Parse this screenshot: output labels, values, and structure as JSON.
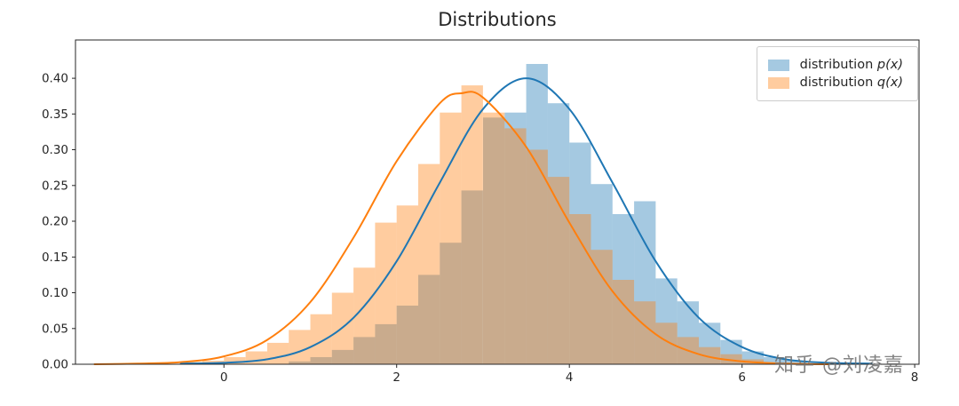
{
  "figure": {
    "title": "Distributions",
    "watermark": "知乎 @刘凌嘉",
    "background": "#ffffff"
  },
  "chart_data": {
    "type": "histogram+kde",
    "title": "Distributions",
    "xlabel": "",
    "ylabel": "",
    "xlim": [
      -1.72,
      8.05
    ],
    "ylim": [
      0,
      0.4535
    ],
    "xticks": [
      0,
      2,
      4,
      6,
      8
    ],
    "yticks": [
      0,
      0.05,
      0.1,
      0.15,
      0.2,
      0.25,
      0.3,
      0.35,
      0.4
    ],
    "bin_width": 0.25,
    "grid": false,
    "legend_position": "upper right",
    "axis_color": "#262626",
    "series": [
      {
        "name": "distribution p(x)",
        "label_prefix": "distribution ",
        "label_math": "p(x)",
        "line_color": "#1f77b4",
        "fill_color": "rgba(31,119,180,0.4)",
        "bar_centers": [
          0.875,
          1.125,
          1.375,
          1.625,
          1.875,
          2.125,
          2.375,
          2.625,
          2.875,
          3.125,
          3.375,
          3.625,
          3.875,
          4.125,
          4.375,
          4.625,
          4.875,
          5.125,
          5.375,
          5.625,
          5.875,
          6.125,
          6.375,
          6.625
        ],
        "bar_heights": [
          0.004,
          0.01,
          0.02,
          0.038,
          0.056,
          0.082,
          0.125,
          0.17,
          0.243,
          0.345,
          0.352,
          0.42,
          0.365,
          0.31,
          0.252,
          0.21,
          0.228,
          0.12,
          0.088,
          0.058,
          0.034,
          0.018,
          0.01,
          0.005
        ],
        "curve_x": [
          -0.5,
          0,
          0.5,
          1,
          1.5,
          2,
          2.5,
          3,
          3.5,
          4,
          4.5,
          5,
          5.5,
          6,
          6.5,
          7,
          7.5
        ],
        "curve_y": [
          0.001,
          0.002,
          0.007,
          0.024,
          0.065,
          0.144,
          0.254,
          0.357,
          0.4,
          0.357,
          0.254,
          0.144,
          0.065,
          0.024,
          0.007,
          0.002,
          0.001
        ]
      },
      {
        "name": "distribution q(x)",
        "label_prefix": "distribution ",
        "label_math": "q(x)",
        "line_color": "#ff7f0e",
        "fill_color": "rgba(255,127,14,0.4)",
        "bar_centers": [
          -0.375,
          -0.125,
          0.125,
          0.375,
          0.625,
          0.875,
          1.125,
          1.375,
          1.625,
          1.875,
          2.125,
          2.375,
          2.625,
          2.875,
          3.125,
          3.375,
          3.625,
          3.875,
          4.125,
          4.375,
          4.625,
          4.875,
          5.125,
          5.375,
          5.625,
          5.875,
          6.125
        ],
        "bar_heights": [
          0.003,
          0.005,
          0.01,
          0.018,
          0.03,
          0.048,
          0.07,
          0.1,
          0.135,
          0.198,
          0.222,
          0.28,
          0.352,
          0.39,
          0.352,
          0.33,
          0.3,
          0.262,
          0.21,
          0.16,
          0.118,
          0.088,
          0.058,
          0.038,
          0.024,
          0.014,
          0.007
        ],
        "curve_x": [
          -1.5,
          -1,
          -0.5,
          0,
          0.5,
          1,
          1.5,
          2,
          2.5,
          2.75,
          3,
          3.5,
          4,
          4.5,
          5,
          5.5,
          6,
          6.5,
          7
        ],
        "curve_y": [
          0.0,
          0.001,
          0.003,
          0.011,
          0.034,
          0.087,
          0.177,
          0.284,
          0.365,
          0.379,
          0.373,
          0.304,
          0.198,
          0.102,
          0.042,
          0.014,
          0.004,
          0.001,
          0.0
        ]
      }
    ]
  }
}
